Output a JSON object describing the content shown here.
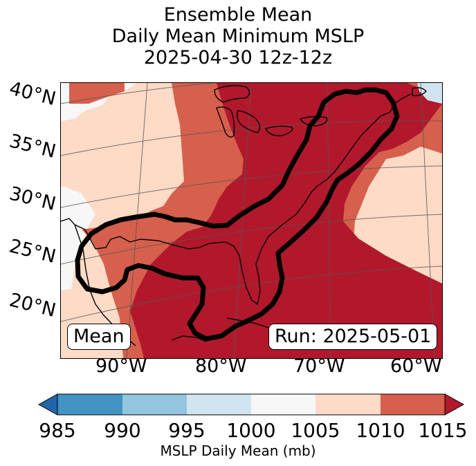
{
  "title": {
    "line1": "Ensemble Mean",
    "line2": "Daily Mean Minimum MSLP",
    "line3": "2025-04-30 12z-12z"
  },
  "map": {
    "lat_labels": [
      "40°N",
      "35°N",
      "30°N",
      "25°N",
      "20°N"
    ],
    "lon_labels": [
      "90°W",
      "80°W",
      "70°W",
      "60°W"
    ],
    "mean_badge": "Mean",
    "run_badge": "Run: 2025-05-01"
  },
  "colorbar": {
    "ticks": [
      "985",
      "990",
      "995",
      "1000",
      "1005",
      "1010",
      "1015"
    ],
    "label": "MSLP Daily Mean (mb)",
    "colors": {
      "under": "#2166ac",
      "985-990": "#4393c3",
      "990-995": "#92c5de",
      "995-1000": "#d1e5f0",
      "1000-1005": "#f7f7f7",
      "1005-1010": "#fddbc7",
      "1010-1015": "#d6604d",
      "over": "#b2182b"
    }
  }
}
